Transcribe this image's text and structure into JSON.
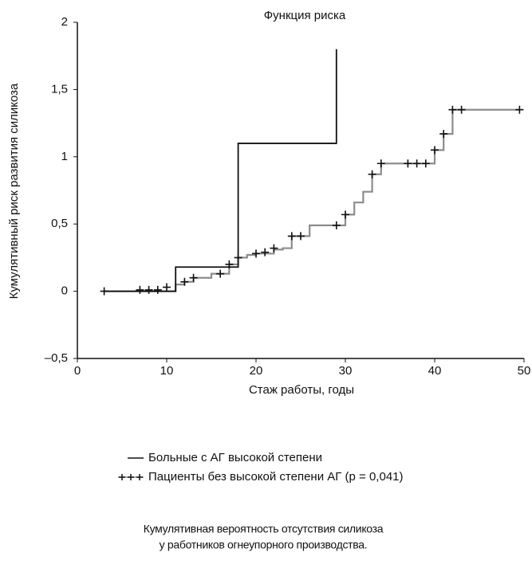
{
  "chart_data": {
    "type": "step",
    "title": "Функция риска",
    "xlabel": "Стаж работы, годы",
    "ylabel": "Кумулятивный риск развития силикоза",
    "xlim": [
      0,
      50
    ],
    "ylim": [
      -0.5,
      2
    ],
    "xticks": [
      0,
      10,
      20,
      30,
      40,
      50
    ],
    "yticks": [
      {
        "value": -0.5,
        "label": "–0,5"
      },
      0,
      {
        "value": 0.5,
        "label": "0,5"
      },
      1,
      {
        "value": 1.5,
        "label": "1,5"
      },
      2
    ],
    "series": [
      {
        "name": "Больные с АГ высокой степени",
        "color": "#111111",
        "x": [
          3,
          11,
          18,
          29
        ],
        "values": [
          0,
          0.18,
          1.1,
          1.8
        ]
      },
      {
        "name": "Пациенты без высокой степени АГ (p = 0,041)",
        "color": "#8c8c8c",
        "marker_color": "#111111",
        "x": [
          3,
          11,
          12,
          13,
          15,
          17,
          18,
          19,
          20,
          22,
          23,
          24,
          26,
          29,
          30,
          31,
          32,
          33,
          34,
          40,
          41,
          42,
          49.5
        ],
        "values": [
          0,
          0.05,
          0.07,
          0.1,
          0.13,
          0.2,
          0.25,
          0.27,
          0.28,
          0.31,
          0.32,
          0.41,
          0.49,
          0.49,
          0.57,
          0.66,
          0.74,
          0.87,
          0.95,
          1.05,
          1.17,
          1.35,
          1.35
        ],
        "censor_x": [
          3,
          7,
          8,
          9,
          10,
          12,
          13,
          16,
          17,
          18,
          20,
          21,
          22,
          24,
          25,
          29,
          30,
          33,
          34,
          37,
          38,
          39,
          40,
          41,
          42,
          43,
          49.5
        ],
        "censor_values": [
          0,
          0.01,
          0.01,
          0.01,
          0.03,
          0.07,
          0.1,
          0.13,
          0.2,
          0.25,
          0.28,
          0.29,
          0.32,
          0.41,
          0.41,
          0.49,
          0.57,
          0.87,
          0.95,
          0.95,
          0.95,
          0.95,
          1.05,
          1.17,
          1.35,
          1.35,
          1.35
        ]
      }
    ],
    "caption": [
      "Кумулятивная вероятность отсутствия силикоза",
      "у работников огнеупорного производства."
    ]
  }
}
